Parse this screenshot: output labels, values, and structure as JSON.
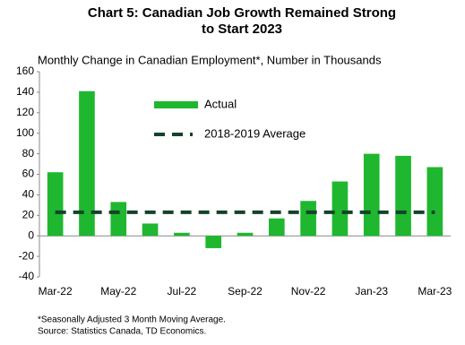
{
  "chart_data": {
    "type": "bar",
    "title": "Chart 5: Canadian Job Growth Remained  Strong to Start 2023",
    "subtitle": "Monthly Change in Canadian Employment*, Number in Thousands",
    "categories": [
      "Mar-22",
      null,
      "May-22",
      null,
      "Jul-22",
      null,
      "Sep-22",
      null,
      "Nov-22",
      null,
      "Jan-23",
      null,
      "Mar-23"
    ],
    "series": [
      {
        "name": "Actual",
        "type": "bar",
        "color": "#1fb72f",
        "values": [
          62,
          141,
          33,
          12,
          3,
          -12,
          3,
          17,
          34,
          53,
          80,
          78,
          67
        ]
      },
      {
        "name": "2018-2019 Average",
        "type": "line",
        "dashed": true,
        "color": "#14432a",
        "values": [
          23,
          23,
          23,
          23,
          23,
          23,
          23,
          23,
          23,
          23,
          23,
          23,
          23
        ]
      }
    ],
    "ylim": [
      -40,
      160
    ],
    "yticks": [
      -40,
      -20,
      0,
      20,
      40,
      60,
      80,
      100,
      120,
      140,
      160
    ],
    "notes": [
      "*Seasonally  Adjusted 3 Month  Moving  Average.",
      "Source:  Statistics Canada,  TD  Economics."
    ]
  }
}
